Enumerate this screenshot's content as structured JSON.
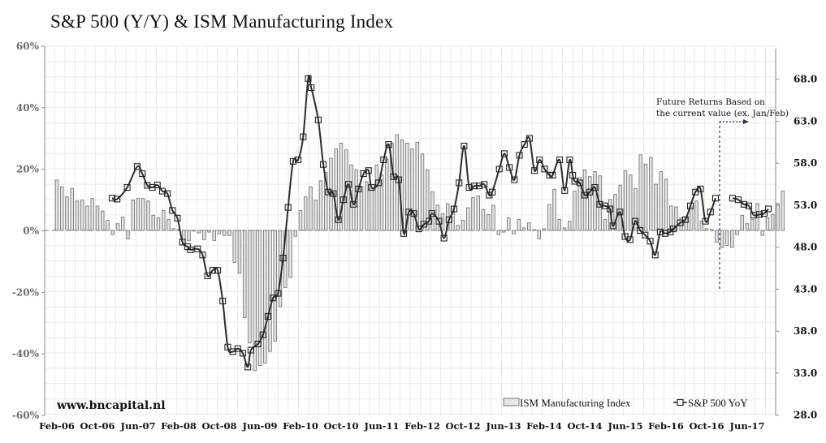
{
  "chart_data": {
    "type": "bar+line",
    "title": "S&P 500 (Y/Y) & ISM Manufacturing Index",
    "watermark": "www.bncapital.nl",
    "annotation": [
      "Future Returns Based on",
      "the current value (ex. Jan/Feb)"
    ],
    "legend": [
      {
        "name": "ISM Manufacturing Index",
        "kind": "bar"
      },
      {
        "name": "S&P 500 YoY",
        "kind": "line-marker"
      }
    ],
    "legend_position": "bottom-right",
    "grid": true,
    "left_axis": {
      "ticks": [
        "60%",
        "40%",
        "20%",
        "0%",
        "-20%",
        "-40%",
        "-60%"
      ],
      "range": [
        -60,
        60
      ],
      "unit": "%"
    },
    "right_axis": {
      "ticks": [
        "68.0",
        "63.0",
        "58.0",
        "53.0",
        "48.0",
        "43.0",
        "38.0",
        "33.0",
        "28.0"
      ],
      "range": [
        28,
        70
      ]
    },
    "x_ticks": [
      "Feb-06",
      "Oct-06",
      "Jun-07",
      "Feb-08",
      "Oct-08",
      "Jun-09",
      "Feb-10",
      "Oct-10",
      "Jun-11",
      "Feb-12",
      "Oct-12",
      "Jun-13",
      "Feb-14",
      "Oct-14",
      "Jun-15",
      "Feb-16",
      "Oct-16",
      "Jun-17"
    ],
    "series": [
      {
        "name": "ISM Manufacturing Index",
        "start": "Feb-06",
        "step_months": 1,
        "values": [
          56.0,
          55.2,
          54.0,
          55.0,
          53.5,
          53.6,
          52.9,
          53.8,
          52.9,
          52.3,
          51.2,
          49.5,
          50.8,
          51.6,
          49.0,
          53.6,
          53.8,
          53.8,
          53.5,
          51.8,
          51.5,
          52.4,
          51.3,
          50.2,
          50.1,
          48.3,
          48.8,
          50.0,
          49.7,
          48.9,
          49.8,
          48.8,
          49.6,
          49.4,
          49.4,
          46.2,
          44.9,
          39.6,
          36.6,
          33.3,
          33.9,
          34.2,
          35.6,
          36.8,
          40.9,
          43.2,
          44.4,
          49.3,
          52.4,
          54.0,
          55.2,
          53.6,
          55.9,
          56.9,
          58.6,
          59.7,
          60.4,
          59.6,
          57.8,
          57.2,
          55.2,
          55.8,
          55.0,
          57.8,
          56.6,
          58.5,
          60.4,
          61.4,
          60.8,
          60.4,
          59.7,
          60.5,
          59.1,
          57.2,
          54.6,
          53.0,
          52.0,
          53.2,
          52.9,
          50.6,
          51.2,
          52.7,
          53.9,
          54.1,
          52.5,
          51.9,
          53.0,
          49.5,
          49.8,
          51.5,
          49.6,
          51.3,
          50.3,
          50.9,
          50.1,
          49.0,
          50.2,
          53.1,
          54.9,
          51.3,
          50.3,
          51.1,
          54.7,
          56.3,
          57.2,
          56.4,
          57.0,
          56.5,
          51.3,
          53.7,
          54.3,
          55.4,
          57.1,
          56.6,
          55.0,
          59.0,
          57.9,
          58.7,
          55.5,
          57.0,
          56.1,
          52.9,
          52.8,
          51.5,
          51.5,
          52.8,
          53.5,
          51.1,
          50.2,
          50.1,
          48.6,
          48.0,
          48.2,
          48.0,
          49.5,
          51.8,
          50.8,
          51.3,
          53.2,
          49.4,
          51.5,
          51.9,
          53.2,
          54.7
        ]
      },
      {
        "name": "S&P 500 YoY",
        "unit": "%",
        "points": [
          {
            "date": "Feb-06",
            "value": null
          },
          {
            "date": "Oct-06",
            "value": 10.5
          },
          {
            "date": "Nov-06",
            "value": 10.2
          },
          {
            "date": "Jan-07",
            "value": 14.0
          },
          {
            "date": "Mar-07",
            "value": 20.8
          },
          {
            "date": "Apr-07",
            "value": 18.5
          },
          {
            "date": "May-07",
            "value": 14.7
          },
          {
            "date": "Jun-07",
            "value": 14.0
          },
          {
            "date": "Jul-07",
            "value": 14.8
          },
          {
            "date": "Aug-07",
            "value": 12.8
          },
          {
            "date": "Sep-07",
            "value": 12.0
          },
          {
            "date": "Oct-07",
            "value": 6.5
          },
          {
            "date": "Nov-07",
            "value": 4.0
          },
          {
            "date": "Dec-07",
            "value": -3.8
          },
          {
            "date": "Jan-08",
            "value": -5.3
          },
          {
            "date": "Feb-08",
            "value": -6.3
          },
          {
            "date": "Mar-08",
            "value": -6.0
          },
          {
            "date": "Apr-08",
            "value": -8.0
          },
          {
            "date": "May-08",
            "value": -14.8
          },
          {
            "date": "Jun-08",
            "value": -13.0
          },
          {
            "date": "Jul-08",
            "value": -13.0
          },
          {
            "date": "Aug-08",
            "value": -23.0
          },
          {
            "date": "Sep-08",
            "value": -38.0
          },
          {
            "date": "Oct-08",
            "value": -39.5
          },
          {
            "date": "Nov-08",
            "value": -38.5
          },
          {
            "date": "Dec-08",
            "value": -40.0
          },
          {
            "date": "Jan-09",
            "value": -44.5
          },
          {
            "date": "Feb-09",
            "value": -39.0
          },
          {
            "date": "Mar-09",
            "value": -37.0
          },
          {
            "date": "Apr-09",
            "value": -34.0
          },
          {
            "date": "May-09",
            "value": -28.0
          },
          {
            "date": "Jun-09",
            "value": -22.0
          },
          {
            "date": "Jul-09",
            "value": -20.5
          },
          {
            "date": "Aug-09",
            "value": -9.0
          },
          {
            "date": "Sep-09",
            "value": 7.5
          },
          {
            "date": "Oct-09",
            "value": 22.5
          },
          {
            "date": "Nov-09",
            "value": 23.0
          },
          {
            "date": "Dec-09",
            "value": 30.5
          },
          {
            "date": "Jan-10",
            "value": 49.5
          },
          {
            "date": "Feb-10",
            "value": 46.5
          },
          {
            "date": "Mar-10",
            "value": 36.0
          },
          {
            "date": "Apr-10",
            "value": 21.5
          },
          {
            "date": "May-10",
            "value": 12.5
          },
          {
            "date": "Jun-10",
            "value": 12.0
          },
          {
            "date": "Jul-10",
            "value": 3.5
          },
          {
            "date": "Aug-10",
            "value": 10.0
          },
          {
            "date": "Sep-10",
            "value": 15.0
          },
          {
            "date": "Oct-10",
            "value": 8.5
          },
          {
            "date": "Nov-10",
            "value": 13.5
          },
          {
            "date": "Dec-10",
            "value": 18.5
          },
          {
            "date": "Jan-11",
            "value": 19.5
          },
          {
            "date": "Feb-11",
            "value": 14.0
          },
          {
            "date": "Mar-11",
            "value": 15.5
          },
          {
            "date": "Apr-11",
            "value": 23.0
          },
          {
            "date": "May-11",
            "value": 28.0
          },
          {
            "date": "Jun-11",
            "value": 17.5
          },
          {
            "date": "Jul-11",
            "value": 16.5
          },
          {
            "date": "Aug-11",
            "value": -1.0
          },
          {
            "date": "Sep-11",
            "value": 6.0
          },
          {
            "date": "Oct-11",
            "value": 5.5
          },
          {
            "date": "Nov-11",
            "value": 0.5
          },
          {
            "date": "Dec-11",
            "value": 2.0
          },
          {
            "date": "Jan-12",
            "value": 3.0
          },
          {
            "date": "Feb-12",
            "value": 5.5
          },
          {
            "date": "Mar-12",
            "value": 3.0
          },
          {
            "date": "Apr-12",
            "value": -2.5
          },
          {
            "date": "May-12",
            "value": 3.5
          },
          {
            "date": "Jun-12",
            "value": 7.0
          },
          {
            "date": "Jul-12",
            "value": 15.5
          },
          {
            "date": "Aug-12",
            "value": 27.5
          },
          {
            "date": "Sep-12",
            "value": 14.0
          },
          {
            "date": "Oct-12",
            "value": 14.5
          },
          {
            "date": "Nov-12",
            "value": 14.5
          },
          {
            "date": "Dec-12",
            "value": 15.0
          },
          {
            "date": "Jan-13",
            "value": 11.5
          },
          {
            "date": "Feb-13",
            "value": 12.5
          },
          {
            "date": "Mar-13",
            "value": 20.0
          },
          {
            "date": "Apr-13",
            "value": 25.0
          },
          {
            "date": "May-13",
            "value": 20.5
          },
          {
            "date": "Jun-13",
            "value": 16.5
          },
          {
            "date": "Jul-13",
            "value": 24.5
          },
          {
            "date": "Aug-13",
            "value": 28.0
          },
          {
            "date": "Sep-13",
            "value": 30.0
          },
          {
            "date": "Oct-13",
            "value": 19.5
          },
          {
            "date": "Nov-13",
            "value": 23.0
          },
          {
            "date": "Dec-13",
            "value": 20.0
          },
          {
            "date": "Jan-14",
            "value": 18.0
          },
          {
            "date": "Feb-14",
            "value": 18.0
          },
          {
            "date": "Mar-14",
            "value": 23.0
          },
          {
            "date": "Apr-14",
            "value": 13.0
          },
          {
            "date": "May-14",
            "value": 23.0
          },
          {
            "date": "May-14b",
            "value": 18.0
          },
          {
            "date": "Jun-14",
            "value": 16.0
          },
          {
            "date": "Jul-14",
            "value": 15.5
          },
          {
            "date": "Aug-14",
            "value": 11.5
          },
          {
            "date": "Sep-14",
            "value": 12.5
          },
          {
            "date": "Oct-14",
            "value": 14.0
          },
          {
            "date": "Nov-14",
            "value": 8.5
          },
          {
            "date": "Dec-14",
            "value": 8.0
          },
          {
            "date": "Jan-15",
            "value": 7.0
          },
          {
            "date": "Feb-15",
            "value": 1.5
          },
          {
            "date": "Mar-15",
            "value": 6.0
          },
          {
            "date": "Apr-15",
            "value": -2.0
          },
          {
            "date": "May-15",
            "value": -3.0
          },
          {
            "date": "Jun-15",
            "value": 3.0
          },
          {
            "date": "Jul-15",
            "value": 0.0
          },
          {
            "date": "Aug-15",
            "value": -1.5
          },
          {
            "date": "Sep-15",
            "value": -3.5
          },
          {
            "date": "Oct-15",
            "value": -8.0
          },
          {
            "date": "Nov-15",
            "value": -0.5
          },
          {
            "date": "Dec-15",
            "value": -1.0
          },
          {
            "date": "Jan-16",
            "value": -0.5
          },
          {
            "date": "Feb-16",
            "value": 0.5
          },
          {
            "date": "Mar-16",
            "value": 2.5
          },
          {
            "date": "Apr-16",
            "value": 3.5
          },
          {
            "date": "May-16",
            "value": 8.0
          },
          {
            "date": "Jun-16",
            "value": 12.5
          },
          {
            "date": "Jul-16",
            "value": 13.5
          },
          {
            "date": "Aug-16",
            "value": 3.0
          },
          {
            "date": "Sep-16",
            "value": 6.0
          },
          {
            "date": "Oct-16",
            "value": 10.5
          }
        ],
        "future_points": [
          10.5,
          10.0,
          8.5,
          8.0,
          5.0,
          5.2,
          5.5,
          7.0
        ]
      }
    ]
  }
}
